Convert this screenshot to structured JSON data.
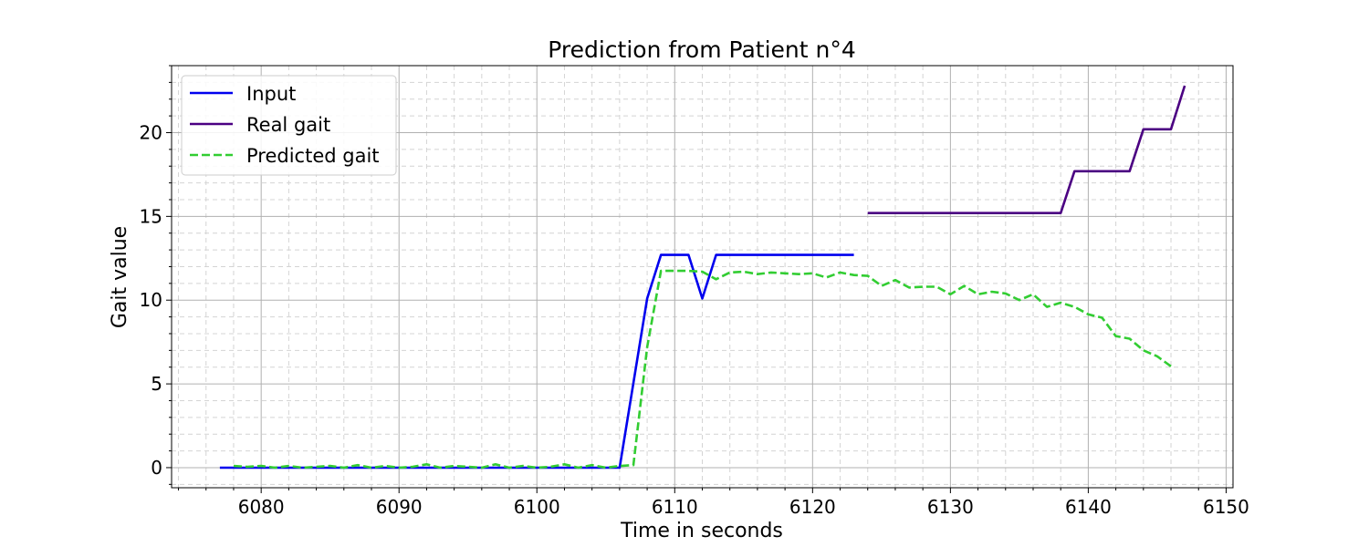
{
  "chart_data": {
    "type": "line",
    "title": "Prediction from Patient n°4",
    "xlabel": "Time in seconds",
    "ylabel": "Gait value",
    "xlim": [
      6073.5,
      6150.5
    ],
    "ylim": [
      -1.2,
      24
    ],
    "xticks": [
      6080,
      6090,
      6100,
      6110,
      6120,
      6130,
      6140,
      6150
    ],
    "yticks": [
      0,
      5,
      10,
      15,
      20
    ],
    "xtick_labels": [
      "6080",
      "6090",
      "6100",
      "6110",
      "6120",
      "6130",
      "6140",
      "6150"
    ],
    "ytick_labels": [
      "0",
      "5",
      "10",
      "15",
      "20"
    ],
    "grid": "major solid, minor dashed",
    "legend_position": "top-left",
    "series": [
      {
        "name": "Input",
        "color": "#0000ee",
        "style": "solid",
        "points": [
          [
            6077,
            0
          ],
          [
            6106,
            0
          ],
          [
            6108,
            10.1
          ],
          [
            6109,
            12.7
          ],
          [
            6110,
            12.7
          ],
          [
            6111,
            12.7
          ],
          [
            6112,
            10.1
          ],
          [
            6113,
            12.7
          ],
          [
            6123,
            12.7
          ]
        ]
      },
      {
        "name": "Real gait",
        "color": "#4b0082",
        "style": "solid",
        "points": [
          [
            6124,
            15.2
          ],
          [
            6138,
            15.2
          ],
          [
            6139,
            17.7
          ],
          [
            6143,
            17.7
          ],
          [
            6144,
            20.2
          ],
          [
            6146,
            20.2
          ],
          [
            6147,
            22.8
          ]
        ]
      },
      {
        "name": "Predicted gait",
        "color": "#32cd32",
        "style": "dashed",
        "points": [
          [
            6078,
            0.1
          ],
          [
            6079,
            0.05
          ],
          [
            6080,
            0.1
          ],
          [
            6081,
            0.0
          ],
          [
            6082,
            0.1
          ],
          [
            6083,
            0.0
          ],
          [
            6084,
            0.05
          ],
          [
            6085,
            0.1
          ],
          [
            6086,
            0.0
          ],
          [
            6087,
            0.15
          ],
          [
            6088,
            0.0
          ],
          [
            6089,
            0.1
          ],
          [
            6090,
            0.0
          ],
          [
            6091,
            0.05
          ],
          [
            6092,
            0.2
          ],
          [
            6093,
            0.0
          ],
          [
            6094,
            0.1
          ],
          [
            6095,
            0.05
          ],
          [
            6096,
            0.0
          ],
          [
            6097,
            0.2
          ],
          [
            6098,
            0.0
          ],
          [
            6099,
            0.1
          ],
          [
            6100,
            0.0
          ],
          [
            6101,
            0.05
          ],
          [
            6102,
            0.2
          ],
          [
            6103,
            0.0
          ],
          [
            6104,
            0.15
          ],
          [
            6105,
            0.0
          ],
          [
            6106,
            0.1
          ],
          [
            6107,
            0.15
          ],
          [
            6108,
            7.2
          ],
          [
            6109,
            11.75
          ],
          [
            6110,
            11.75
          ],
          [
            6111,
            11.75
          ],
          [
            6112,
            11.7
          ],
          [
            6113,
            11.25
          ],
          [
            6114,
            11.65
          ],
          [
            6115,
            11.7
          ],
          [
            6116,
            11.55
          ],
          [
            6117,
            11.65
          ],
          [
            6118,
            11.6
          ],
          [
            6119,
            11.55
          ],
          [
            6120,
            11.6
          ],
          [
            6121,
            11.35
          ],
          [
            6122,
            11.65
          ],
          [
            6123,
            11.5
          ],
          [
            6124,
            11.45
          ],
          [
            6125,
            10.85
          ],
          [
            6126,
            11.2
          ],
          [
            6127,
            10.75
          ],
          [
            6128,
            10.8
          ],
          [
            6129,
            10.8
          ],
          [
            6130,
            10.35
          ],
          [
            6131,
            10.85
          ],
          [
            6132,
            10.35
          ],
          [
            6133,
            10.5
          ],
          [
            6134,
            10.4
          ],
          [
            6135,
            10.0
          ],
          [
            6136,
            10.35
          ],
          [
            6137,
            9.6
          ],
          [
            6138,
            9.85
          ],
          [
            6139,
            9.6
          ],
          [
            6140,
            9.15
          ],
          [
            6141,
            8.95
          ],
          [
            6142,
            7.85
          ],
          [
            6143,
            7.7
          ],
          [
            6144,
            7.0
          ],
          [
            6145,
            6.65
          ],
          [
            6146,
            6.05
          ]
        ]
      }
    ]
  }
}
